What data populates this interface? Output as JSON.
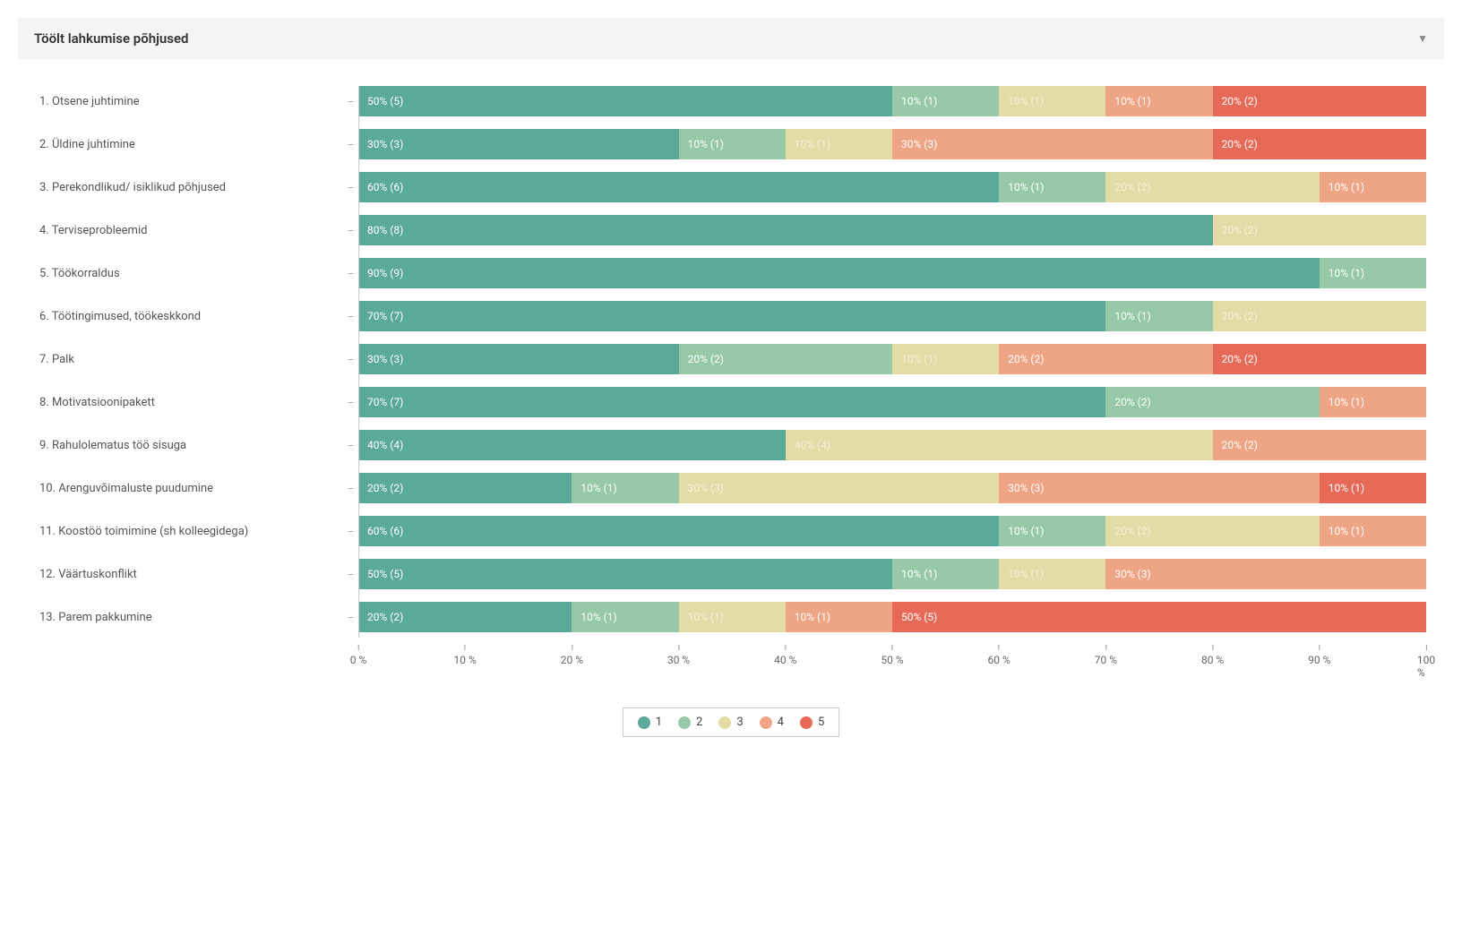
{
  "panel": {
    "title": "Töölt lahkumise põhjused"
  },
  "chart": {
    "type": "stacked-bar-horizontal",
    "series_labels": [
      "1",
      "2",
      "3",
      "4",
      "5"
    ],
    "series_colors": [
      "#5ba999",
      "#97c9a8",
      "#e4dca7",
      "#eea585",
      "#e66a57"
    ],
    "text_color_on_light": "#f5f0d8",
    "background": "#ffffff",
    "axis_color": "#999999",
    "label_color": "#555555",
    "label_fontsize": 13,
    "value_fontsize": 12,
    "xlim": [
      0,
      100
    ],
    "xtick_step": 10,
    "xtick_suffix": " %",
    "rows": [
      {
        "label": "1. Otsene juhtimine",
        "values": [
          50,
          10,
          10,
          10,
          20
        ],
        "counts": [
          5,
          1,
          1,
          1,
          2
        ]
      },
      {
        "label": "2. Üldine juhtimine",
        "values": [
          30,
          10,
          10,
          30,
          20
        ],
        "counts": [
          3,
          1,
          1,
          3,
          2
        ]
      },
      {
        "label": "3. Perekondlikud/ isiklikud põhjused",
        "values": [
          60,
          10,
          20,
          10,
          0
        ],
        "counts": [
          6,
          1,
          2,
          1,
          0
        ]
      },
      {
        "label": "4. Terviseprobleemid",
        "values": [
          80,
          0,
          20,
          0,
          0
        ],
        "counts": [
          8,
          0,
          2,
          0,
          0
        ]
      },
      {
        "label": "5. Töökorraldus",
        "values": [
          90,
          10,
          0,
          0,
          0
        ],
        "counts": [
          9,
          1,
          0,
          0,
          0
        ]
      },
      {
        "label": "6. Töötingimused, töökeskkond",
        "values": [
          70,
          10,
          20,
          0,
          0
        ],
        "counts": [
          7,
          1,
          2,
          0,
          0
        ]
      },
      {
        "label": "7. Palk",
        "values": [
          30,
          20,
          10,
          20,
          20
        ],
        "counts": [
          3,
          2,
          1,
          2,
          2
        ]
      },
      {
        "label": "8. Motivatsioonipakett",
        "values": [
          70,
          20,
          0,
          10,
          0
        ],
        "counts": [
          7,
          2,
          0,
          1,
          0
        ]
      },
      {
        "label": "9. Rahulolematus töö sisuga",
        "values": [
          40,
          0,
          40,
          20,
          0
        ],
        "counts": [
          4,
          0,
          4,
          2,
          0
        ]
      },
      {
        "label": "10. Arenguvõimaluste puudumine",
        "values": [
          20,
          10,
          30,
          30,
          10
        ],
        "counts": [
          2,
          1,
          3,
          3,
          1
        ]
      },
      {
        "label": "11. Koostöö toimimine (sh kolleegidega)",
        "values": [
          60,
          10,
          20,
          10,
          0
        ],
        "counts": [
          6,
          1,
          2,
          1,
          0
        ]
      },
      {
        "label": "12. Väärtuskonflikt",
        "values": [
          50,
          10,
          10,
          30,
          0
        ],
        "counts": [
          5,
          1,
          1,
          3,
          0
        ]
      },
      {
        "label": "13. Parem pakkumine",
        "values": [
          20,
          10,
          10,
          10,
          50
        ],
        "counts": [
          2,
          1,
          1,
          1,
          5
        ]
      }
    ]
  }
}
